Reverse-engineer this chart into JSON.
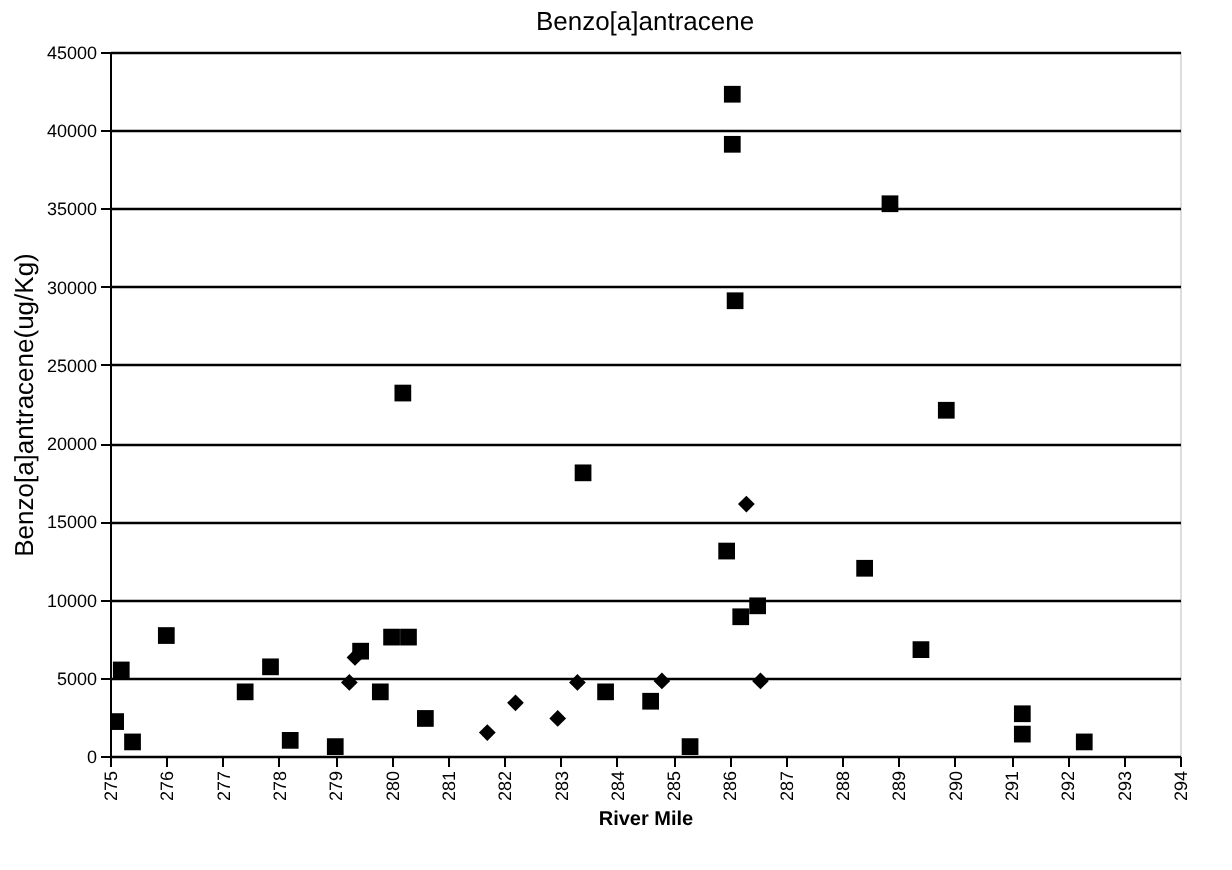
{
  "chart_data": {
    "type": "scatter",
    "title": "Benzo[a]antracene",
    "xlabel": "River Mile",
    "ylabel": "Benzo[a]antracene(ug/Kg)",
    "xlim": [
      275,
      294
    ],
    "xticks": [
      275,
      276,
      277,
      278,
      279,
      280,
      281,
      282,
      283,
      284,
      285,
      286,
      287,
      288,
      289,
      290,
      291,
      292,
      293,
      294
    ],
    "ylim": [
      0,
      45000
    ],
    "yticks": [
      0,
      5000,
      10000,
      15000,
      20000,
      25000,
      30000,
      35000,
      40000,
      45000
    ],
    "grid": "y",
    "series": [
      {
        "color": "#000000",
        "marker": "square",
        "x": [
          275.1,
          275.2,
          275.4,
          276.0,
          277.4,
          277.85,
          278.2,
          279.0,
          279.45,
          279.8,
          280.0,
          280.3,
          280.2,
          280.6,
          283.4,
          283.8,
          284.6,
          285.3,
          286.05,
          286.05,
          286.1,
          285.95,
          286.2,
          286.5,
          288.85,
          288.4,
          289.85,
          289.4,
          291.2,
          291.2,
          292.3
        ],
        "values": [
          2200,
          5500,
          900,
          7700,
          4100,
          5700,
          1000,
          600,
          6700,
          4100,
          7600,
          7600,
          23200,
          2400,
          18100,
          4100,
          3500,
          600,
          42300,
          39100,
          29100,
          13100,
          8900,
          9600,
          35300,
          12000,
          22100,
          6800,
          2700,
          1400,
          900
        ]
      },
      {
        "color": "#000000",
        "marker": "diamond",
        "x": [
          279.25,
          279.35,
          281.7,
          282.2,
          282.95,
          283.3,
          284.8,
          286.3,
          286.55
        ],
        "values": [
          4700,
          6300,
          1500,
          3400,
          2400,
          4700,
          4800,
          16100,
          4800
        ]
      }
    ]
  }
}
